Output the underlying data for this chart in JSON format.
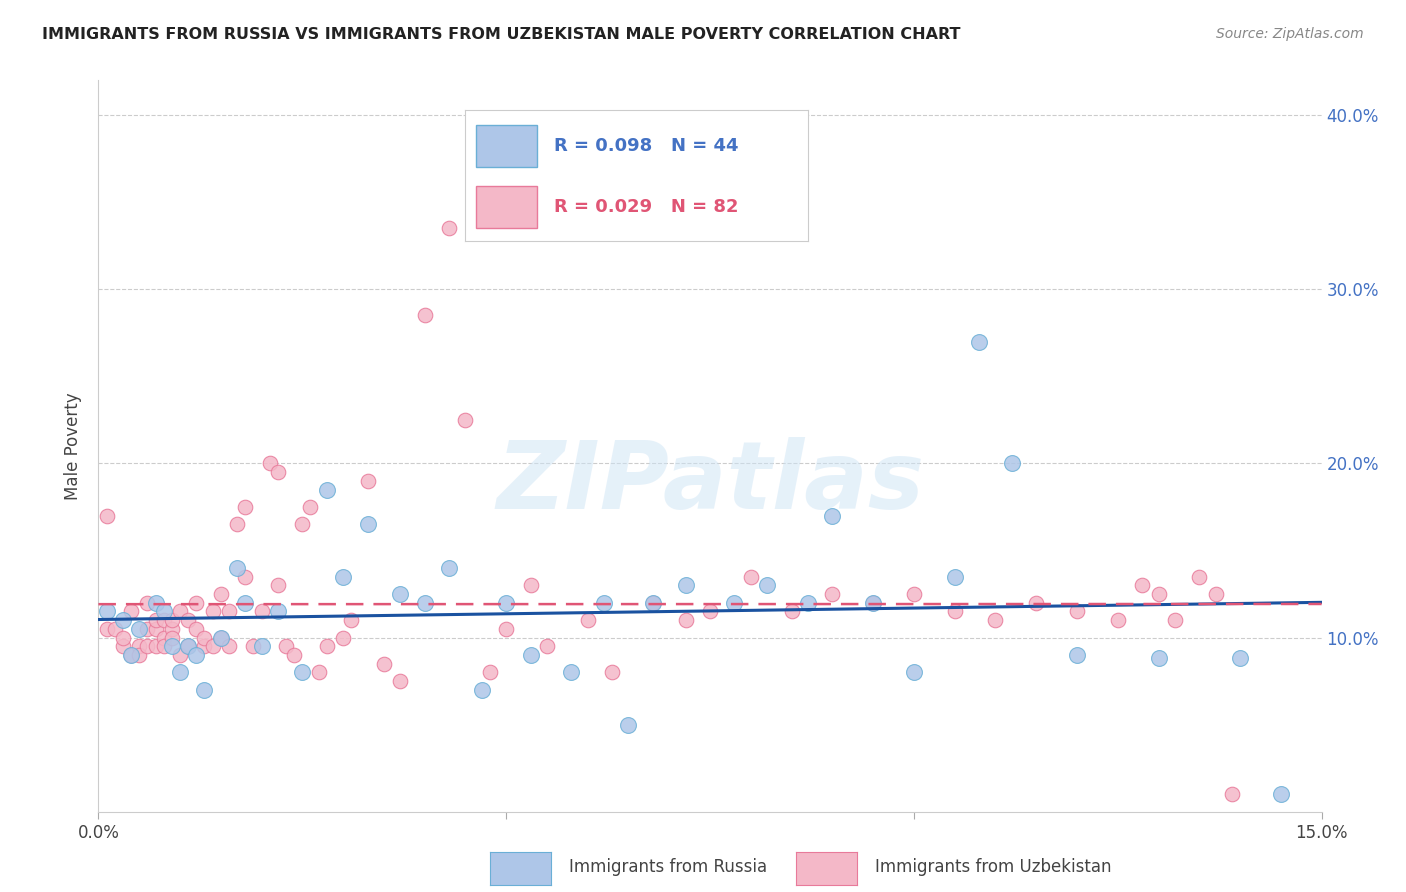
{
  "title": "IMMIGRANTS FROM RUSSIA VS IMMIGRANTS FROM UZBEKISTAN MALE POVERTY CORRELATION CHART",
  "source": "Source: ZipAtlas.com",
  "ylabel": "Male Poverty",
  "xlim": [
    0.0,
    0.15
  ],
  "ylim": [
    0.0,
    0.42
  ],
  "russia_color": "#aec6e8",
  "russia_edge": "#6aafd6",
  "uzbekistan_color": "#f4b8c8",
  "uzbekistan_edge": "#e87a9a",
  "russia_R": 0.098,
  "russia_N": 44,
  "uzbekistan_R": 0.029,
  "uzbekistan_N": 82,
  "russia_line_color": "#1a52a0",
  "uzbekistan_line_color": "#e05575",
  "background_color": "#ffffff",
  "russia_x": [
    0.001,
    0.003,
    0.004,
    0.005,
    0.007,
    0.008,
    0.009,
    0.01,
    0.011,
    0.012,
    0.013,
    0.015,
    0.017,
    0.018,
    0.02,
    0.022,
    0.025,
    0.028,
    0.03,
    0.033,
    0.037,
    0.04,
    0.043,
    0.047,
    0.05,
    0.053,
    0.058,
    0.062,
    0.065,
    0.068,
    0.072,
    0.078,
    0.082,
    0.087,
    0.09,
    0.095,
    0.1,
    0.105,
    0.108,
    0.112,
    0.12,
    0.13,
    0.14,
    0.145
  ],
  "russia_y": [
    0.115,
    0.11,
    0.09,
    0.105,
    0.12,
    0.115,
    0.095,
    0.08,
    0.095,
    0.09,
    0.07,
    0.1,
    0.14,
    0.12,
    0.095,
    0.115,
    0.08,
    0.185,
    0.135,
    0.165,
    0.125,
    0.12,
    0.14,
    0.07,
    0.12,
    0.09,
    0.08,
    0.12,
    0.05,
    0.12,
    0.13,
    0.12,
    0.13,
    0.12,
    0.17,
    0.12,
    0.08,
    0.135,
    0.27,
    0.2,
    0.09,
    0.088,
    0.088,
    0.01
  ],
  "uzbekistan_x": [
    0.001,
    0.001,
    0.002,
    0.003,
    0.003,
    0.004,
    0.004,
    0.005,
    0.005,
    0.006,
    0.006,
    0.006,
    0.007,
    0.007,
    0.007,
    0.008,
    0.008,
    0.008,
    0.009,
    0.009,
    0.009,
    0.01,
    0.01,
    0.011,
    0.011,
    0.012,
    0.012,
    0.013,
    0.013,
    0.014,
    0.014,
    0.015,
    0.015,
    0.016,
    0.016,
    0.017,
    0.018,
    0.018,
    0.019,
    0.02,
    0.021,
    0.022,
    0.022,
    0.023,
    0.024,
    0.025,
    0.026,
    0.027,
    0.028,
    0.03,
    0.031,
    0.033,
    0.035,
    0.037,
    0.04,
    0.043,
    0.045,
    0.048,
    0.05,
    0.053,
    0.055,
    0.06,
    0.063,
    0.068,
    0.072,
    0.075,
    0.08,
    0.085,
    0.09,
    0.095,
    0.1,
    0.105,
    0.11,
    0.115,
    0.12,
    0.125,
    0.128,
    0.13,
    0.132,
    0.135,
    0.137,
    0.139
  ],
  "uzbekistan_y": [
    0.105,
    0.17,
    0.105,
    0.095,
    0.1,
    0.09,
    0.115,
    0.095,
    0.09,
    0.095,
    0.105,
    0.12,
    0.105,
    0.11,
    0.095,
    0.1,
    0.11,
    0.095,
    0.105,
    0.1,
    0.11,
    0.115,
    0.09,
    0.095,
    0.11,
    0.105,
    0.12,
    0.095,
    0.1,
    0.095,
    0.115,
    0.1,
    0.125,
    0.115,
    0.095,
    0.165,
    0.175,
    0.135,
    0.095,
    0.115,
    0.2,
    0.195,
    0.13,
    0.095,
    0.09,
    0.165,
    0.175,
    0.08,
    0.095,
    0.1,
    0.11,
    0.19,
    0.085,
    0.075,
    0.285,
    0.335,
    0.225,
    0.08,
    0.105,
    0.13,
    0.095,
    0.11,
    0.08,
    0.12,
    0.11,
    0.115,
    0.135,
    0.115,
    0.125,
    0.12,
    0.125,
    0.115,
    0.11,
    0.12,
    0.115,
    0.11,
    0.13,
    0.125,
    0.11,
    0.135,
    0.125,
    0.01
  ]
}
